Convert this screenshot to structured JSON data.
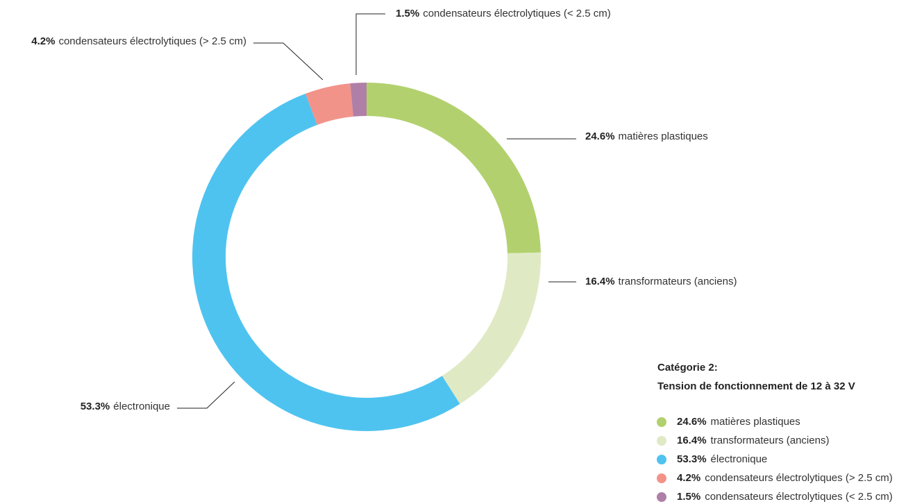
{
  "chart_data": {
    "type": "donut",
    "title": "Catégorie 2:",
    "subtitle": "Tension de fonctionnement de 12 à 32 V",
    "categories": [
      "matières plastiques",
      "transformateurs (anciens)",
      "électronique",
      "condensateurs électrolytiques (> 2.5 cm)",
      "condensateurs électrolytiques (< 2.5 cm)"
    ],
    "values": [
      24.6,
      16.4,
      53.3,
      4.2,
      1.5
    ],
    "value_labels": [
      "24.6%",
      "16.4%",
      "53.3%",
      "4.2%",
      "1.5%"
    ],
    "colors": [
      "#b2d16e",
      "#dfeac5",
      "#4fc3ef",
      "#f2938a",
      "#b07fa8"
    ]
  }
}
